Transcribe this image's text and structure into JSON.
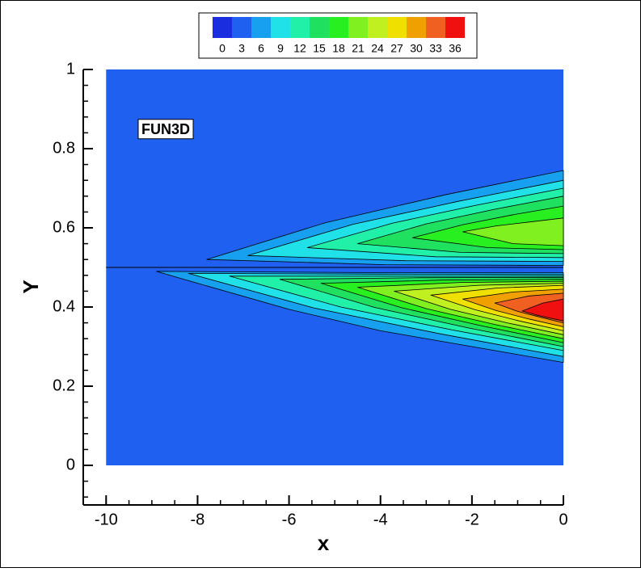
{
  "chart_data": {
    "type": "contour",
    "xlabel": "x",
    "ylabel": "Y",
    "annotation": "FUN3D",
    "xlim": [
      -10.5,
      0
    ],
    "ylim": [
      -0.1,
      1
    ],
    "xticks": [
      -10,
      -8,
      -6,
      -4,
      -2,
      0
    ],
    "yticks": [
      0,
      0.2,
      0.4,
      0.6,
      0.8,
      1
    ],
    "colorbar": {
      "levels": [
        0,
        3,
        6,
        9,
        12,
        15,
        18,
        21,
        24,
        27,
        30,
        33,
        36
      ],
      "colors": [
        "#1a2ee0",
        "#2060f0",
        "#18a0f0",
        "#20e0e8",
        "#20f0a8",
        "#20e060",
        "#28f020",
        "#80f020",
        "#c0f020",
        "#f0e000",
        "#f0a000",
        "#f06020",
        "#f01010"
      ]
    },
    "background_level": 3,
    "contours": [
      {
        "level": 6,
        "x": [
          -7.8,
          -5.2,
          -2.6,
          0,
          0,
          -3.9
        ],
        "y": [
          0.52,
          0.613,
          0.683,
          0.745,
          0.505,
          0.507
        ]
      },
      {
        "level": 9,
        "x": [
          -6.9,
          -4.6,
          -2.3,
          0,
          0,
          -3.45
        ],
        "y": [
          0.53,
          0.609,
          0.667,
          0.72,
          0.515,
          0.517
        ]
      },
      {
        "level": 12,
        "x": [
          -5.6,
          -3.73,
          -1.87,
          0,
          0,
          -2.8
        ],
        "y": [
          0.55,
          0.612,
          0.658,
          0.7,
          0.525,
          0.527
        ]
      },
      {
        "level": 15,
        "x": [
          -4.5,
          -3.0,
          -1.5,
          0,
          0,
          -2.25
        ],
        "y": [
          0.56,
          0.61,
          0.647,
          0.68,
          0.535,
          0.538
        ]
      },
      {
        "level": 18,
        "x": [
          -3.3,
          -2.2,
          -1.1,
          0,
          0,
          -1.65
        ],
        "y": [
          0.575,
          0.608,
          0.633,
          0.655,
          0.545,
          0.55
        ]
      },
      {
        "level": 21,
        "x": [
          -2.2,
          -1.47,
          -0.73,
          0,
          0,
          -1.1
        ],
        "y": [
          0.59,
          0.605,
          0.615,
          0.625,
          0.555,
          0.56
        ]
      },
      {
        "level": 6,
        "x": [
          -8.9,
          -4.45,
          0,
          0,
          -2,
          -4,
          -6,
          -8
        ],
        "y": [
          0.49,
          0.487,
          0.487,
          0.26,
          0.3,
          0.34,
          0.394,
          0.46
        ]
      },
      {
        "level": 9,
        "x": [
          -8.2,
          -4.1,
          0,
          0,
          -2.73,
          -5.47
        ],
        "y": [
          0.485,
          0.483,
          0.482,
          0.275,
          0.333,
          0.398
        ]
      },
      {
        "level": 12,
        "x": [
          -7.3,
          -3.65,
          0,
          0,
          -2.43,
          -4.87
        ],
        "y": [
          0.478,
          0.478,
          0.478,
          0.29,
          0.342,
          0.4
        ]
      },
      {
        "level": 15,
        "x": [
          -6.2,
          -3.1,
          0,
          0,
          -2.07,
          -4.13
        ],
        "y": [
          0.47,
          0.474,
          0.475,
          0.3,
          0.347,
          0.399
        ]
      },
      {
        "level": 18,
        "x": [
          -5.3,
          -2.65,
          0,
          0,
          -1.77,
          -3.53
        ],
        "y": [
          0.46,
          0.468,
          0.47,
          0.31,
          0.352,
          0.398
        ]
      },
      {
        "level": 21,
        "x": [
          -4.5,
          -2.25,
          0,
          0,
          -1.5,
          -3.0
        ],
        "y": [
          0.45,
          0.462,
          0.465,
          0.32,
          0.356,
          0.396
        ]
      },
      {
        "level": 24,
        "x": [
          -3.7,
          -1.85,
          0,
          0,
          -1.23,
          -2.47
        ],
        "y": [
          0.44,
          0.455,
          0.46,
          0.33,
          0.36,
          0.394
        ]
      },
      {
        "level": 27,
        "x": [
          -2.9,
          -1.45,
          0,
          0,
          -0.97,
          -1.93
        ],
        "y": [
          0.43,
          0.448,
          0.455,
          0.34,
          0.365,
          0.393
        ]
      },
      {
        "level": 30,
        "x": [
          -2.2,
          -1.1,
          0,
          0,
          -0.73,
          -1.47
        ],
        "y": [
          0.42,
          0.438,
          0.445,
          0.35,
          0.369,
          0.391
        ]
      },
      {
        "level": 33,
        "x": [
          -1.5,
          -0.75,
          0,
          0,
          -0.5,
          -1.0
        ],
        "y": [
          0.41,
          0.428,
          0.435,
          0.36,
          0.374,
          0.389
        ]
      },
      {
        "level": 36,
        "x": [
          -0.9,
          -0.45,
          0,
          0,
          -0.3,
          -0.6
        ],
        "y": [
          0.39,
          0.41,
          0.42,
          0.365,
          0.372,
          0.38
        ]
      }
    ],
    "divider_y": 0.5
  }
}
